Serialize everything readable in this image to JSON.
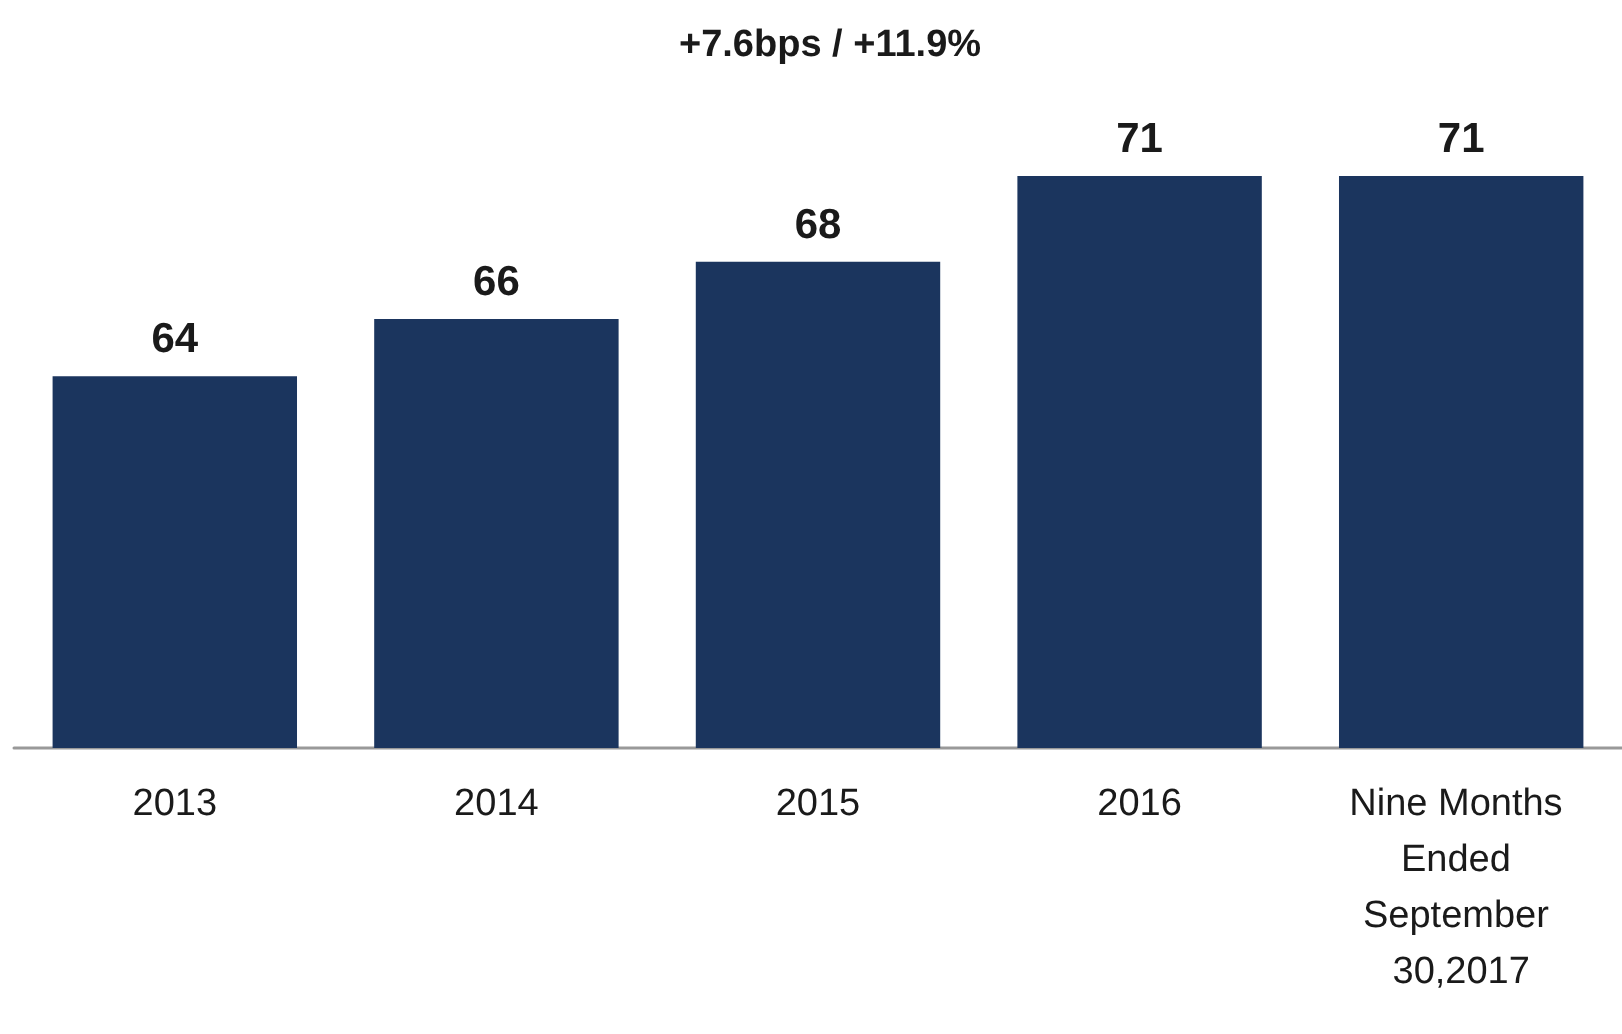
{
  "chart_data": {
    "type": "bar",
    "title": "+7.6bps / +11.9%",
    "categories": [
      "2013",
      "2014",
      "2015",
      "2016",
      "Nine Months Ended September 30,2017"
    ],
    "values": [
      64,
      66,
      68,
      71,
      71
    ],
    "color": "#1b355e",
    "data_labels": true,
    "tick_labels": "x",
    "ylim": [
      51,
      71
    ],
    "grid": false
  }
}
